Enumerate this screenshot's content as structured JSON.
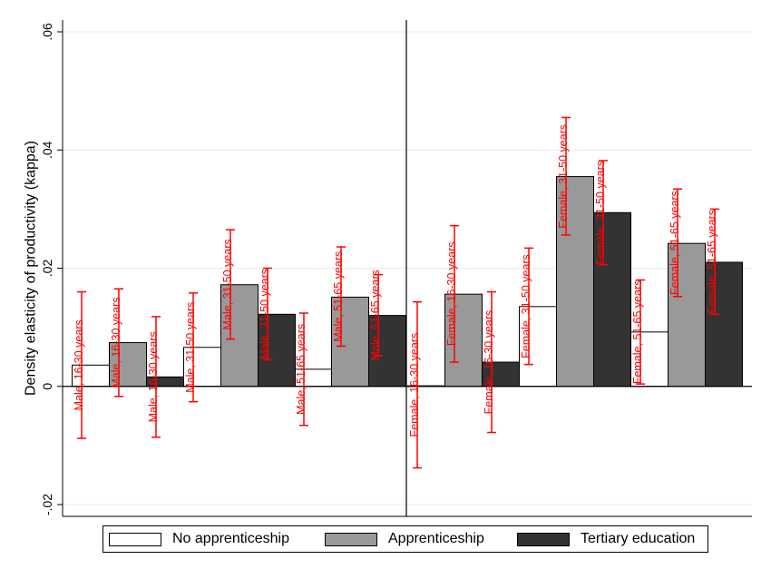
{
  "chart_data": {
    "type": "bar",
    "ylabel": "Density elasticity of productivity (kappa)",
    "ylim": [
      -0.022,
      0.062
    ],
    "yticks": [
      -0.02,
      0,
      0.02,
      0.04,
      0.06
    ],
    "ytick_labels": [
      "-.02",
      "0",
      ".02",
      ".04",
      ".06"
    ],
    "grid": true,
    "legend_position": "bottom",
    "colors": {
      "No apprenticeship": "#ffffff",
      "Apprenticeship": "#999999",
      "Tertiary education": "#333333",
      "error_bars": "#ff0000"
    },
    "series": [
      {
        "name": "No apprenticeship",
        "labels": [
          "Male, 16-30 years",
          "Male, 31-50 years",
          "Male, 51-65 years",
          "Female, 16-30 years",
          "Female, 31-50 years",
          "Female, 51-65 years"
        ],
        "values": [
          0.0036,
          0.0066,
          0.0029,
          0.0001,
          0.0135,
          0.0092
        ],
        "ci_low": [
          -0.0088,
          -0.0026,
          -0.0066,
          -0.0138,
          0.0037,
          0.0004
        ],
        "ci_high": [
          0.016,
          0.0158,
          0.0124,
          0.0143,
          0.0234,
          0.018
        ]
      },
      {
        "name": "Apprenticeship",
        "labels": [
          "Male, 16-30 years",
          "Male, 31-50 years",
          "Male, 51-65 years",
          "Female, 16-30 years",
          "Female, 31-50 years",
          "Female, 51-65 years"
        ],
        "values": [
          0.0074,
          0.0172,
          0.0151,
          0.0156,
          0.0355,
          0.0242
        ],
        "ci_low": [
          -0.0017,
          0.008,
          0.0068,
          0.0041,
          0.0256,
          0.0152
        ],
        "ci_high": [
          0.0165,
          0.0265,
          0.0236,
          0.0272,
          0.0455,
          0.0334
        ]
      },
      {
        "name": "Tertiary education",
        "labels": [
          "Male, 16-30 years",
          "Male, 31-50 years",
          "Male, 51-65 years",
          "Female, 16-30 years",
          "Female, 31-50 years",
          "Female, 51-65 years"
        ],
        "values": [
          0.0016,
          0.0122,
          0.012,
          0.0041,
          0.0294,
          0.021
        ],
        "ci_low": [
          -0.0086,
          0.0045,
          0.0052,
          -0.0078,
          0.0206,
          0.0122
        ],
        "ci_high": [
          0.0118,
          0.02,
          0.0189,
          0.016,
          0.0382,
          0.03
        ]
      }
    ]
  }
}
